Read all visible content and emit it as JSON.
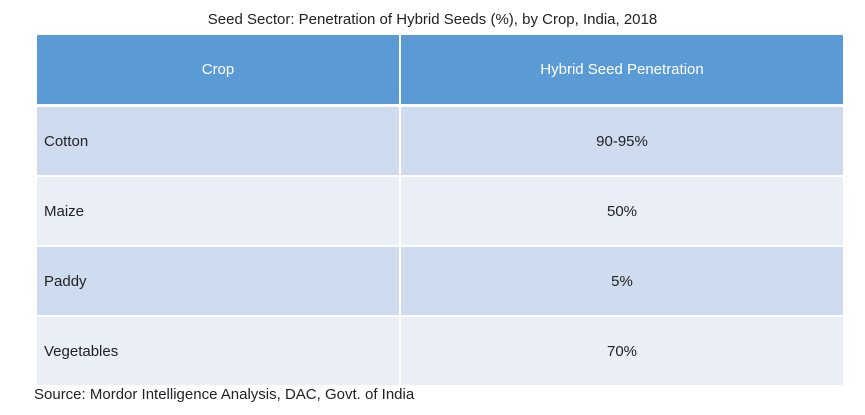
{
  "chart_data": {
    "type": "table",
    "title": "Seed Sector: Penetration of Hybrid Seeds (%), by Crop, India, 2018",
    "columns": [
      "Crop",
      "Hybrid Seed Penetration"
    ],
    "rows": [
      {
        "crop": "Cotton",
        "penetration": "90-95%"
      },
      {
        "crop": "Maize",
        "penetration": "50%"
      },
      {
        "crop": "Paddy",
        "penetration": "5%"
      },
      {
        "crop": "Vegetables",
        "penetration": "70%"
      }
    ],
    "source": "Source: Mordor Intelligence Analysis, DAC, Govt. of India"
  },
  "colors": {
    "header_bg": "#5b9bd5",
    "row_odd": "#cfdcef",
    "row_even": "#e9eef7"
  }
}
